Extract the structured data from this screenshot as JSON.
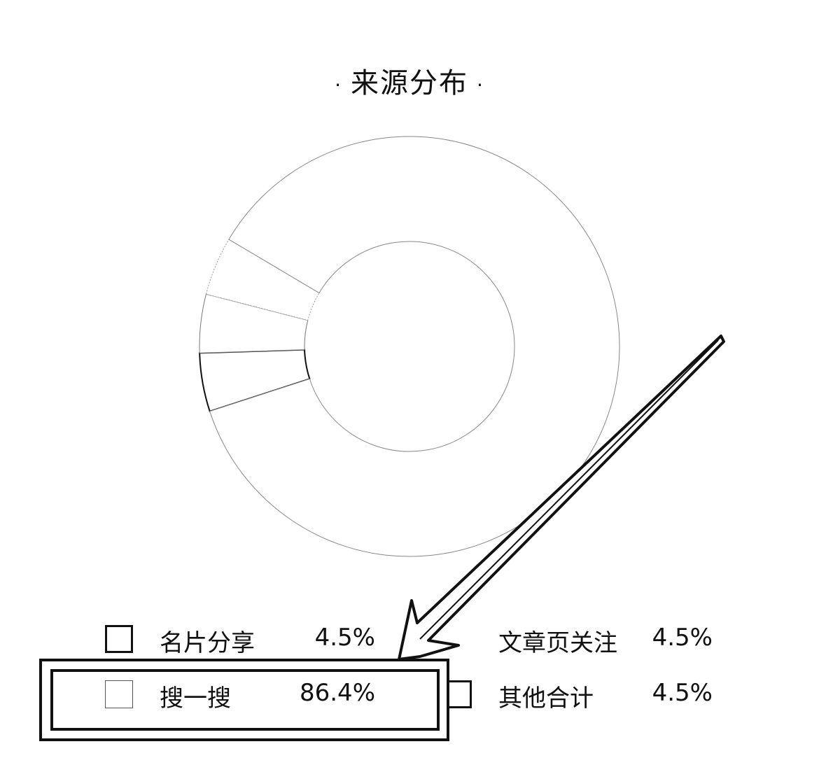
{
  "title": "来源分布",
  "title_dot": "·",
  "chart_data": {
    "type": "pie",
    "categories": [
      "名片分享",
      "搜一搜",
      "文章页关注",
      "其他合计"
    ],
    "values": [
      4.5,
      86.4,
      4.5,
      4.5
    ],
    "labels": [
      "4.5%",
      "86.4%",
      "4.5%",
      "4.5%"
    ],
    "legend_position": "bottom",
    "highlighted_category": "搜一搜"
  },
  "legend": [
    {
      "label": "名片分享",
      "value": "4.5%"
    },
    {
      "label": "搜一搜",
      "value": "86.4%"
    },
    {
      "label": "文章页关注",
      "value": "4.5%"
    },
    {
      "label": "其他合计",
      "value": "4.5%"
    }
  ]
}
